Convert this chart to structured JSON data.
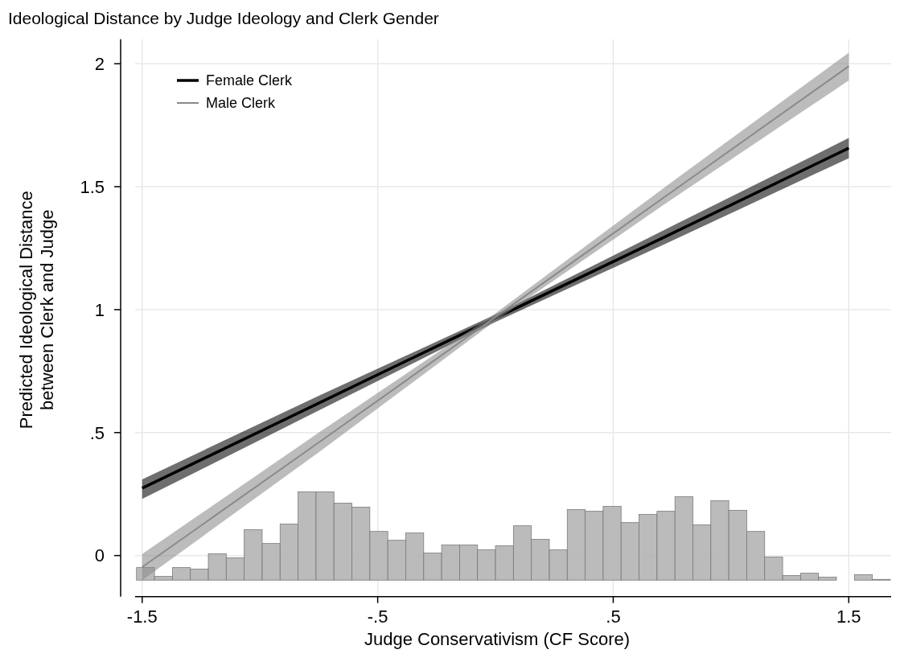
{
  "chart_data": {
    "type": "line",
    "title": "Ideological Distance by Judge Ideology and Clerk Gender",
    "xlabel": "Judge Conservativism (CF Score)",
    "ylabel": "Predicted Ideological Distance\nbetween Clerk and Judge",
    "xlim": [
      -1.53,
      1.68
    ],
    "ylim": [
      -0.167,
      2.1
    ],
    "xticks": [
      {
        "value": -1.5,
        "label": "-1.5"
      },
      {
        "value": -0.5,
        "label": "-.5"
      },
      {
        "value": 0.5,
        "label": ".5"
      },
      {
        "value": 1.5,
        "label": "1.5"
      }
    ],
    "yticks": [
      0,
      {
        "value": 0.5,
        "label": ".5"
      },
      1,
      {
        "value": 1.5,
        "label": "1.5"
      },
      2
    ],
    "grid": true,
    "legend": "top left",
    "series": [
      {
        "type": "histogram",
        "color": "#b4b4b4",
        "bins": [
          -1.524,
          -1.4478,
          -1.3716,
          -1.2954,
          -1.2192,
          -1.143,
          -1.0668,
          -0.9906,
          -0.9144,
          -0.8382,
          -0.762,
          -0.6858,
          -0.6096,
          -0.5334,
          -0.4572,
          -0.381,
          -0.3048,
          -0.2286,
          -0.1524,
          -0.0762,
          0,
          0.0762,
          0.1524,
          0.2286,
          0.3048,
          0.381,
          0.4572,
          0.5334,
          0.6096,
          0.6858,
          0.762,
          0.8382,
          0.9144,
          0.9906,
          1.0668,
          1.143,
          1.2192,
          1.2954,
          1.3716,
          1.4478,
          1.524,
          1.6002,
          1.6764
        ],
        "base": [
          -0.1,
          -0.1,
          -0.1,
          -0.1,
          -0.1,
          -0.1,
          -0.1,
          -0.1,
          -0.1,
          -0.1,
          -0.1,
          -0.1,
          -0.1,
          -0.1,
          -0.1,
          -0.1,
          -0.1,
          -0.1,
          -0.1,
          -0.1,
          -0.1,
          -0.1,
          -0.1,
          -0.1,
          -0.1,
          -0.1,
          -0.1,
          -0.1,
          -0.1,
          -0.1,
          -0.1,
          -0.1,
          -0.1,
          -0.1,
          -0.1,
          -0.1,
          -0.1,
          -0.1,
          -0.1,
          null,
          -0.1,
          -0.1
        ],
        "values": [
          0.051,
          0.015,
          0.051,
          0.045,
          0.107,
          0.091,
          0.205,
          0.149,
          0.228,
          0.359,
          0.359,
          0.313,
          0.297,
          0.198,
          0.162,
          0.192,
          0.11,
          0.143,
          0.143,
          0.123,
          0.14,
          0.221,
          0.166,
          0.123,
          0.287,
          0.28,
          0.3,
          0.234,
          0.267,
          0.28,
          0.339,
          0.225,
          0.323,
          0.284,
          0.198,
          0.094,
          0.019,
          0.028,
          0.012,
          null,
          0.022,
          0.003
        ]
      },
      {
        "name": "Female Clerk",
        "color": "#000000",
        "x": [
          -1.5,
          -0.75,
          0,
          0.75,
          1.5
        ],
        "values": [
          0.274,
          0.62,
          0.966,
          1.31,
          1.657
        ],
        "lower": [
          0.23,
          0.59,
          0.95,
          1.28,
          1.616
        ],
        "upper": [
          0.31,
          0.65,
          0.98,
          1.34,
          1.698
        ]
      },
      {
        "name": "Male Clerk",
        "color": "#8a8a8a",
        "x": [
          -1.5,
          -0.75,
          0,
          0.75,
          1.5
        ],
        "values": [
          -0.047,
          0.46,
          0.97,
          1.48,
          1.99
        ],
        "lower": [
          -0.1,
          0.42,
          0.955,
          1.45,
          1.932
        ],
        "upper": [
          0.006,
          0.5,
          0.985,
          1.52,
          2.045
        ]
      }
    ]
  }
}
